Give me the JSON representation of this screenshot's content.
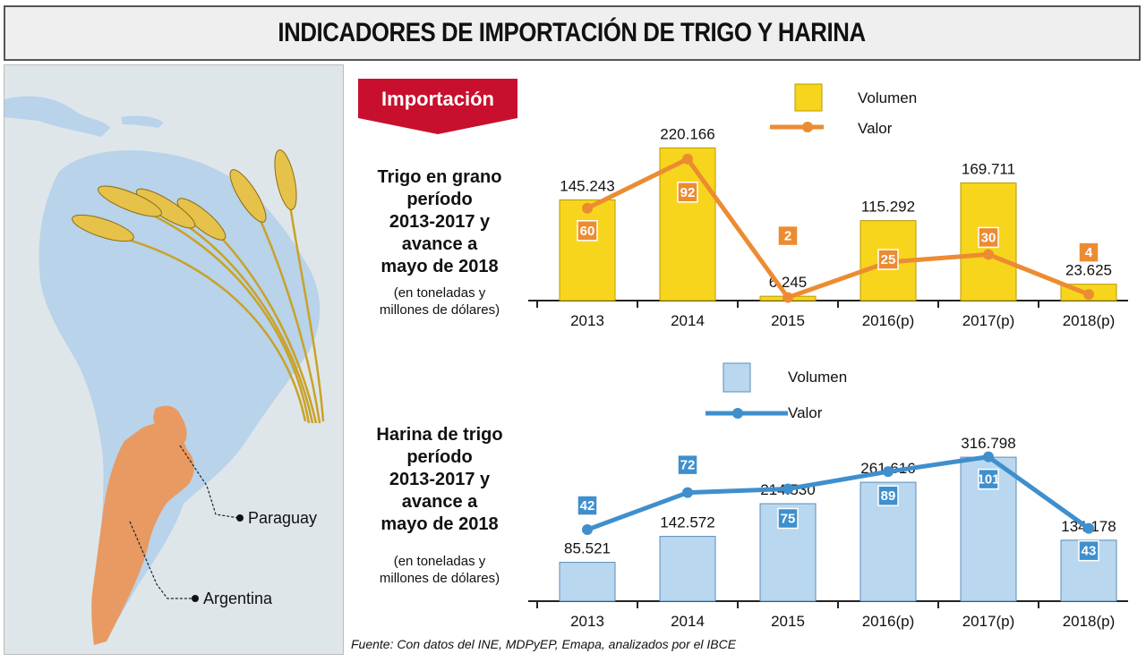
{
  "header": {
    "title": "INDICADORES DE IMPORTACIÓN DE TRIGO Y HARINA"
  },
  "badge": {
    "label": "Importación"
  },
  "map": {
    "labels": {
      "paraguay": "Paraguay",
      "argentina": "Argentina"
    },
    "colors": {
      "sea": "#dfe6ea",
      "land": "#b8d3ea",
      "highlight": "#e89a62",
      "wheat": "#e6c24a"
    }
  },
  "charts": {
    "trigo": {
      "title_lines": [
        "Trigo en grano",
        "período",
        "2013-2017 y",
        "avance a",
        "mayo de 2018"
      ],
      "sub_lines": [
        "(en toneladas y",
        "millones de dólares)"
      ],
      "legend": {
        "volume": "Volumen",
        "value": "Valor"
      }
    },
    "harina": {
      "title_lines": [
        "Harina de trigo",
        "período",
        "2013-2017 y",
        "avance a",
        "mayo de 2018"
      ],
      "sub_lines": [
        "(en toneladas y",
        "millones de dólares)"
      ],
      "legend": {
        "volume": "Volumen",
        "value": "Valor"
      }
    }
  },
  "chart_data": [
    {
      "type": "bar",
      "categories": [
        "2013",
        "2014",
        "2015",
        "2016(p)",
        "2017(p)",
        "2018(p)"
      ],
      "series": [
        {
          "name": "Volumen",
          "values": [
            145243,
            220166,
            6245,
            115292,
            169711,
            23625
          ],
          "labels": [
            "145.243",
            "220.166",
            "6.245",
            "115.292",
            "169.711",
            "23.625"
          ],
          "color": "#f7d51d",
          "edge": "#b89a00"
        },
        {
          "name": "Valor",
          "type": "line",
          "values": [
            60,
            92,
            2,
            25,
            30,
            4
          ],
          "color": "#ec8c32"
        }
      ]
    },
    {
      "type": "bar",
      "categories": [
        "2013",
        "2014",
        "2015",
        "2016(p)",
        "2017(p)",
        "2018(p)"
      ],
      "series": [
        {
          "name": "Volumen",
          "values": [
            85521,
            142572,
            214530,
            261616,
            316798,
            134178
          ],
          "labels": [
            "85.521",
            "142.572",
            "214.530",
            "261.616",
            "316.798",
            "134.178"
          ],
          "color": "#b9d7ef",
          "edge": "#5b8db8"
        },
        {
          "name": "Valor",
          "type": "line",
          "values": [
            42,
            72,
            75,
            89,
            101,
            43
          ],
          "color": "#3f8fcd"
        }
      ]
    }
  ],
  "source": "Fuente: Con datos del INE, MDPyEP, Emapa, analizados por el IBCE"
}
